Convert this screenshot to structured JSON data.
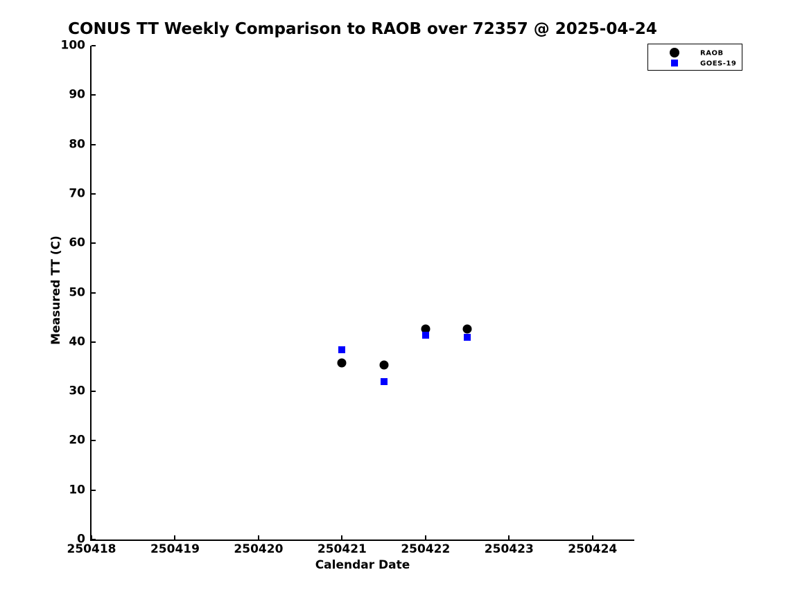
{
  "chart_data": {
    "type": "scatter",
    "title": "CONUS TT Weekly Comparison to RAOB over 72357 @ 2025-04-24",
    "xlabel": "Calendar Date",
    "ylabel": "Measured TT (C)",
    "xlim": [
      250418,
      250424.5
    ],
    "ylim": [
      0,
      100
    ],
    "x_ticks": [
      250418,
      250419,
      250420,
      250421,
      250422,
      250423,
      250424
    ],
    "y_ticks": [
      0,
      10,
      20,
      30,
      40,
      50,
      60,
      70,
      80,
      90,
      100
    ],
    "grid": false,
    "legend_position": "upper right, outside axes",
    "series": [
      {
        "name": "RAOB",
        "marker": "circle",
        "color": "#000000",
        "points": [
          [
            250421.0,
            35.7
          ],
          [
            250421.5,
            35.4
          ],
          [
            250422.0,
            42.7
          ],
          [
            250422.5,
            42.7
          ]
        ]
      },
      {
        "name": "GOES-19",
        "marker": "square",
        "color": "#0000ff",
        "points": [
          [
            250421.0,
            38.4
          ],
          [
            250421.5,
            32.0
          ],
          [
            250422.0,
            41.4
          ],
          [
            250422.5,
            40.9
          ]
        ]
      }
    ],
    "colors": {
      "axis": "#000000",
      "text": "#000000",
      "background": "#ffffff"
    }
  }
}
